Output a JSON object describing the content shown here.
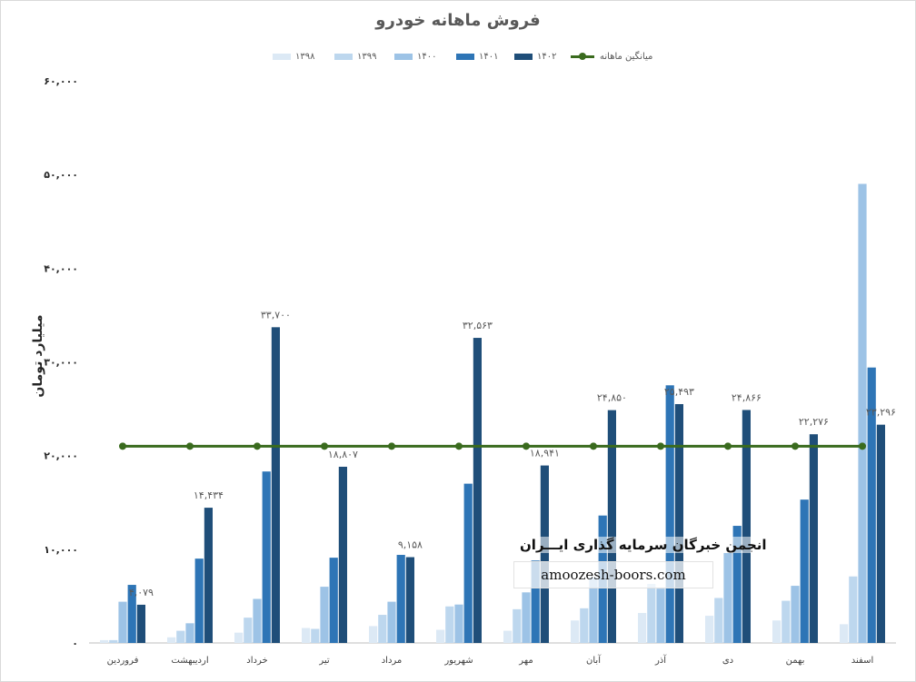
{
  "chart_data": {
    "type": "bar",
    "title": "فروش ماهانه خودرو",
    "ylabel": "میلیارد تومان",
    "ylim": [
      0,
      60000
    ],
    "yticks": [
      "۰",
      "۱۰,۰۰۰",
      "۲۰,۰۰۰",
      "۳۰,۰۰۰",
      "۴۰,۰۰۰",
      "۵۰,۰۰۰",
      "۶۰,۰۰۰"
    ],
    "categories": [
      "فروردین",
      "اردیبهشت",
      "خرداد",
      "تیر",
      "مرداد",
      "شهریور",
      "مهر",
      "آبان",
      "آذر",
      "دی",
      "بهمن",
      "اسفند"
    ],
    "series": [
      {
        "name": "۱۳۹۸",
        "color": "#dce9f5",
        "values": [
          300,
          600,
          1100,
          1600,
          1800,
          1400,
          1300,
          2400,
          3200,
          2900,
          2400,
          2000
        ]
      },
      {
        "name": "۱۳۹۹",
        "color": "#bdd7ee",
        "values": [
          300,
          1300,
          2700,
          1500,
          3000,
          3900,
          3600,
          3700,
          6300,
          4800,
          4500,
          7100
        ]
      },
      {
        "name": "۱۴۰۰",
        "color": "#9dc3e6",
        "values": [
          4400,
          2100,
          4700,
          6000,
          4400,
          4100,
          5400,
          7000,
          5800,
          9600,
          6100,
          49000
        ]
      },
      {
        "name": "۱۴۰۱",
        "color": "#2e75b6",
        "values": [
          6200,
          9000,
          18300,
          9100,
          9400,
          17000,
          8800,
          13600,
          27500,
          12500,
          15300,
          29400
        ]
      },
      {
        "name": "۱۴۰۲",
        "color": "#1f4e79",
        "values": [
          4079,
          14434,
          33700,
          18807,
          9158,
          32563,
          18941,
          24850,
          25493,
          24866,
          22276,
          23296
        ]
      }
    ],
    "data_labels": [
      "۴,۰۷۹",
      "۱۴,۴۳۴",
      "۳۳,۷۰۰",
      "۱۸,۸۰۷",
      "۹,۱۵۸",
      "۳۲,۵۶۳",
      "۱۸,۹۴۱",
      "۲۴,۸۵۰",
      "۲۵,۴۹۳",
      "۲۴,۸۶۶",
      "۲۲,۲۷۶",
      "۲۳,۲۹۶"
    ],
    "average_line": {
      "name": "میانگین ماهانه",
      "value": 21000,
      "color": "#3a6b1e"
    },
    "grid": false,
    "legend_position": "top"
  },
  "watermark": {
    "line1": "انجمن خبرگان سرمایه گذاری ایـــران",
    "line2": "amoozesh-boors.com"
  }
}
